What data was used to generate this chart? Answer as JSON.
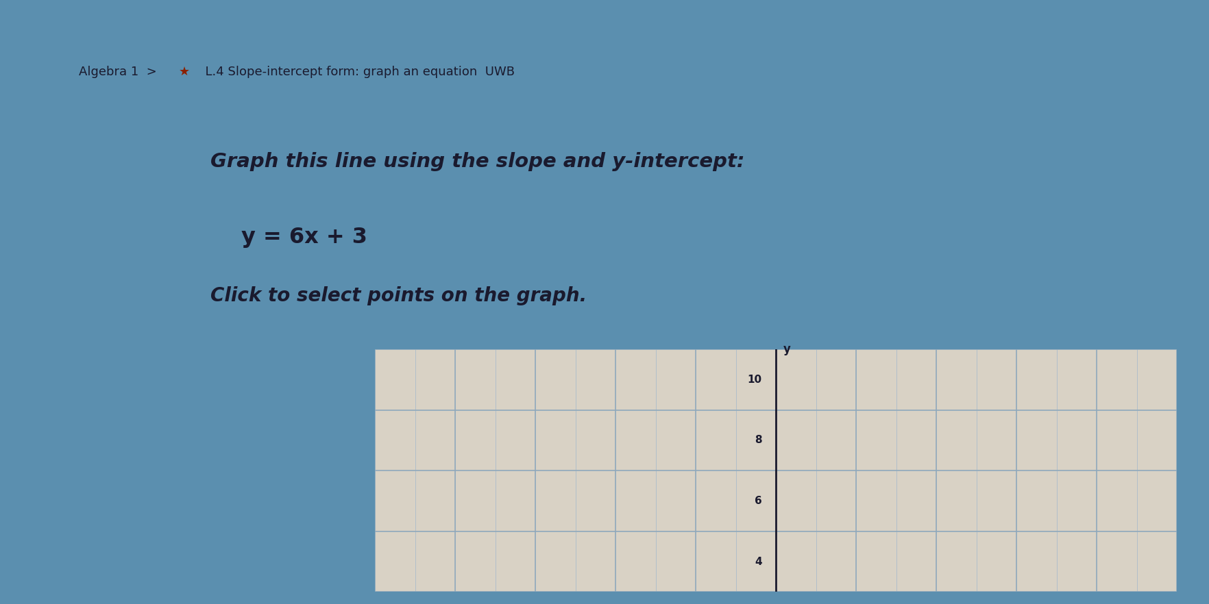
{
  "title_bar_bg": "#7a9dbf",
  "title_bar_text_color": "#1a1a2e",
  "star_color": "#8B2000",
  "instruction_text": "Graph this line using the slope and y-intercept:",
  "equation_text": "y = 6x + 3",
  "click_text": "Click to select points on the graph.",
  "panel_bg": "#d9d2c5",
  "outer_bg_top": "#2a5f8a",
  "outer_bg": "#5b8faf",
  "graph_bg": "#d9d2c5",
  "grid_thin_color": "#aabccc",
  "grid_thick_color": "#8fa8bb",
  "axis_color": "#1a1a2e",
  "tick_label_color": "#1a1a2e",
  "text_color": "#1a1a2e",
  "font_size_instruction": 21,
  "font_size_equation": 23,
  "font_size_click": 20,
  "font_size_title": 13,
  "x_min": -10,
  "x_max": 10,
  "y_min": 3,
  "y_max": 11,
  "y_tick_labels": [
    4,
    6,
    8,
    10
  ],
  "arrow_size": 12
}
